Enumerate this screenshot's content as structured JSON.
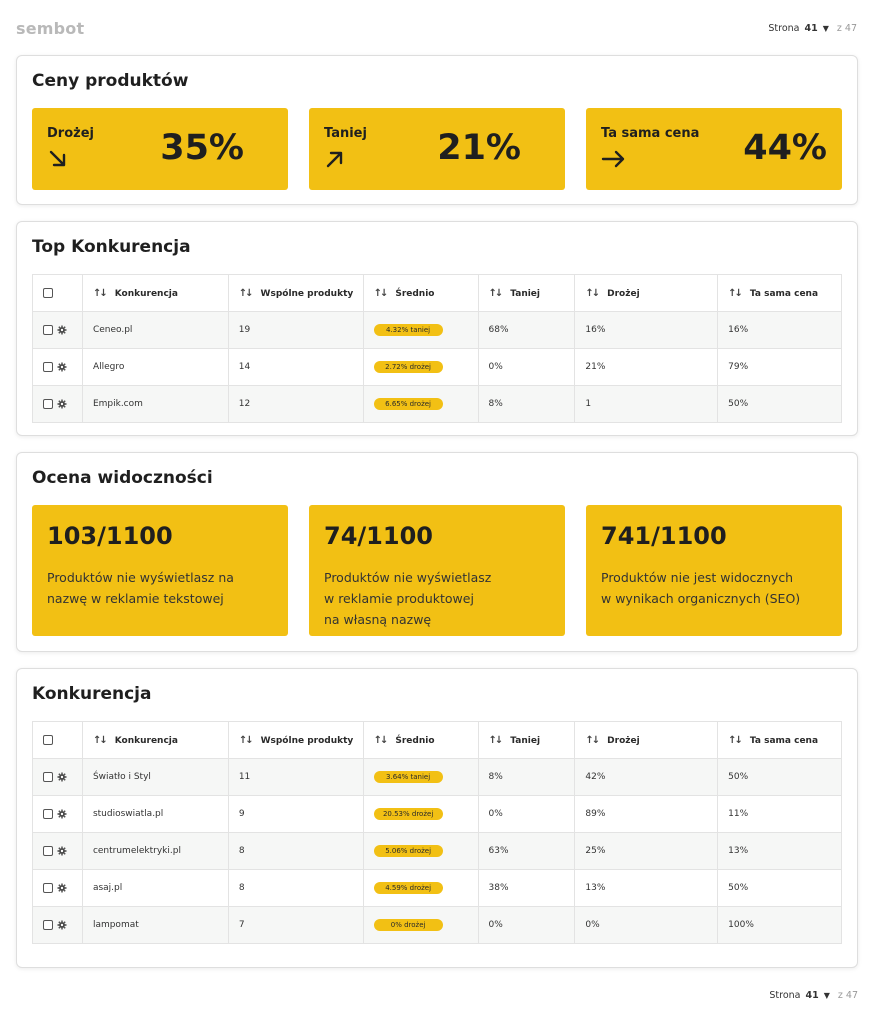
{
  "header": {
    "logo": "sembot",
    "page_label": "Strona",
    "page_number": "41",
    "page_of": "z 47"
  },
  "footer": {
    "page_label": "Strona",
    "page_number": "41",
    "page_of": "z 47"
  },
  "prices": {
    "title": "Ceny produktów",
    "tiles": [
      {
        "label": "Drożej",
        "value": "35%",
        "arrow_icon": "arrow-down-right-icon"
      },
      {
        "label": "Taniej",
        "value": "21%",
        "arrow_icon": "arrow-up-right-icon"
      },
      {
        "label": "Ta sama cena",
        "value": "44%",
        "arrow_icon": "arrow-right-icon"
      }
    ]
  },
  "table_headers": [
    "Konkurencja",
    "Wspólne produkty",
    "Średnio",
    "Taniej",
    "Drożej",
    "Ta sama cena"
  ],
  "top_competition": {
    "title": "Top Konkurencja",
    "rows": [
      {
        "name": "Ceneo.pl",
        "common": "19",
        "avg": "4.32% taniej",
        "cheaper": "68%",
        "pricier": "16%",
        "same": "16%"
      },
      {
        "name": "Allegro",
        "common": "14",
        "avg": "2.72% drożej",
        "cheaper": "0%",
        "pricier": "21%",
        "same": "79%"
      },
      {
        "name": "Empik.com",
        "common": "12",
        "avg": "6.65% drożej",
        "cheaper": "8%",
        "pricier": "1",
        "same": "50%"
      }
    ]
  },
  "visibility": {
    "title": "Ocena widoczności",
    "tiles": [
      {
        "value": "103/1100",
        "lines": [
          "Produktów nie wyświetlasz na",
          "nazwę w reklamie tekstowej"
        ]
      },
      {
        "value": "74/1100",
        "lines": [
          "Produktów nie wyświetlasz",
          "w reklamie produktowej",
          "na własną nazwę"
        ]
      },
      {
        "value": "741/1100",
        "lines": [
          "Produktów nie jest widocznych",
          "w wynikach organicznych (SEO)"
        ]
      }
    ]
  },
  "competition": {
    "title": "Konkurencja",
    "rows": [
      {
        "name": "Światło i Styl",
        "common": "11",
        "avg": "3.64% taniej",
        "cheaper": "8%",
        "pricier": "42%",
        "same": "50%"
      },
      {
        "name": "studioswiatla.pl",
        "common": "9",
        "avg": "20.53% drożej",
        "cheaper": "0%",
        "pricier": "89%",
        "same": "11%"
      },
      {
        "name": "centrumelektryki.pl",
        "common": "8",
        "avg": "5.06% drożej",
        "cheaper": "63%",
        "pricier": "25%",
        "same": "13%"
      },
      {
        "name": "asaj.pl",
        "common": "8",
        "avg": "4.59% drożej",
        "cheaper": "38%",
        "pricier": "13%",
        "same": "50%"
      },
      {
        "name": "lampomat",
        "common": "7",
        "avg": "0% drożej",
        "cheaper": "0%",
        "pricier": "0%",
        "same": "100%"
      }
    ]
  },
  "colors": {
    "accent": "#f2c014",
    "row_alt": "#f6f7f6",
    "border": "#e3e3e3"
  }
}
